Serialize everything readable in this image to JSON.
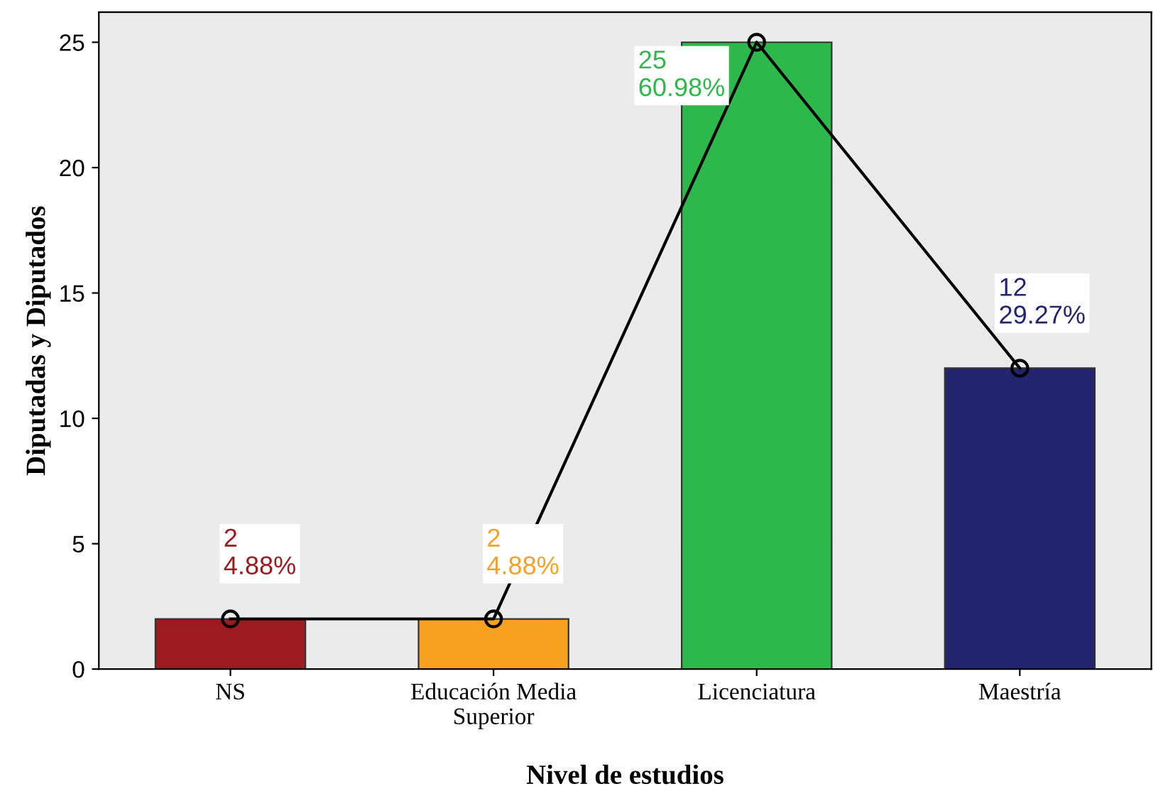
{
  "chart_data": {
    "type": "bar",
    "xlabel": "Nivel de estudios",
    "ylabel": "Diputadas y Diputados",
    "categories": [
      "NS",
      "Educación Media Superior",
      "Licenciatura",
      "Maestría"
    ],
    "series": [
      {
        "values": [
          2,
          2,
          25,
          12
        ],
        "colors": [
          "#9b1b20",
          "#f7a11f",
          "#2db84b",
          "#23246e"
        ],
        "value_labels": [
          "2\n4.88%",
          "2\n4.88%",
          "25\n60.98%",
          "12\n29.27%"
        ]
      },
      {
        "type": "line",
        "values": [
          2,
          2,
          25,
          12
        ],
        "color": "#000000",
        "marker": "circle"
      }
    ],
    "ylim": [
      0,
      26.2
    ],
    "yticks": [
      0,
      5,
      10,
      15,
      20,
      25
    ],
    "grid": false,
    "legend": false
  }
}
